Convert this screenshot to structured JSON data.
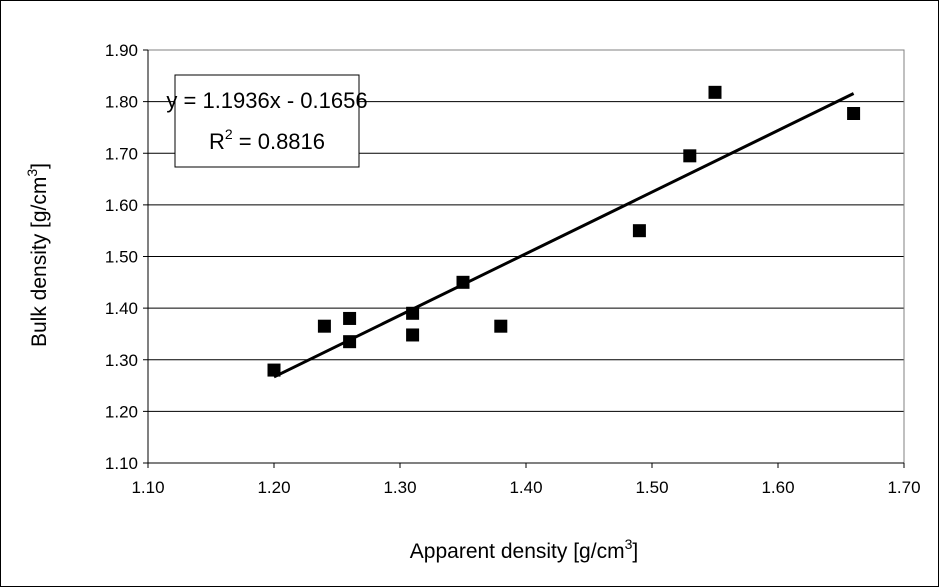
{
  "chart_data": {
    "type": "scatter",
    "title": "",
    "xlabel": "Apparent density [g/cm",
    "xlabel_sup": "3",
    "xlabel_suffix": "]",
    "ylabel": "Bulk density [g/cm",
    "ylabel_sup": "3",
    "ylabel_suffix": "]",
    "xlim": [
      1.1,
      1.7
    ],
    "ylim": [
      1.1,
      1.9
    ],
    "xticks": [
      "1.10",
      "1.20",
      "1.30",
      "1.40",
      "1.50",
      "1.60",
      "1.70"
    ],
    "yticks": [
      "1.10",
      "1.20",
      "1.30",
      "1.40",
      "1.50",
      "1.60",
      "1.70",
      "1.80",
      "1.90"
    ],
    "grid": true,
    "series": [
      {
        "marker": "square",
        "color": "#000000",
        "points": [
          [
            1.2,
            1.28
          ],
          [
            1.24,
            1.365
          ],
          [
            1.26,
            1.38
          ],
          [
            1.26,
            1.335
          ],
          [
            1.31,
            1.39
          ],
          [
            1.31,
            1.348
          ],
          [
            1.35,
            1.45
          ],
          [
            1.38,
            1.365
          ],
          [
            1.49,
            1.55
          ],
          [
            1.53,
            1.695
          ],
          [
            1.55,
            1.818
          ],
          [
            1.66,
            1.777
          ]
        ]
      }
    ],
    "trendline": {
      "slope": 1.1936,
      "intercept": -0.1656,
      "x_range": [
        1.2,
        1.66
      ],
      "equation": "y = 1.1936x - 0.1656",
      "r2_prefix": "R",
      "r2_sup": "2",
      "r2_value": " = 0.8816"
    }
  }
}
